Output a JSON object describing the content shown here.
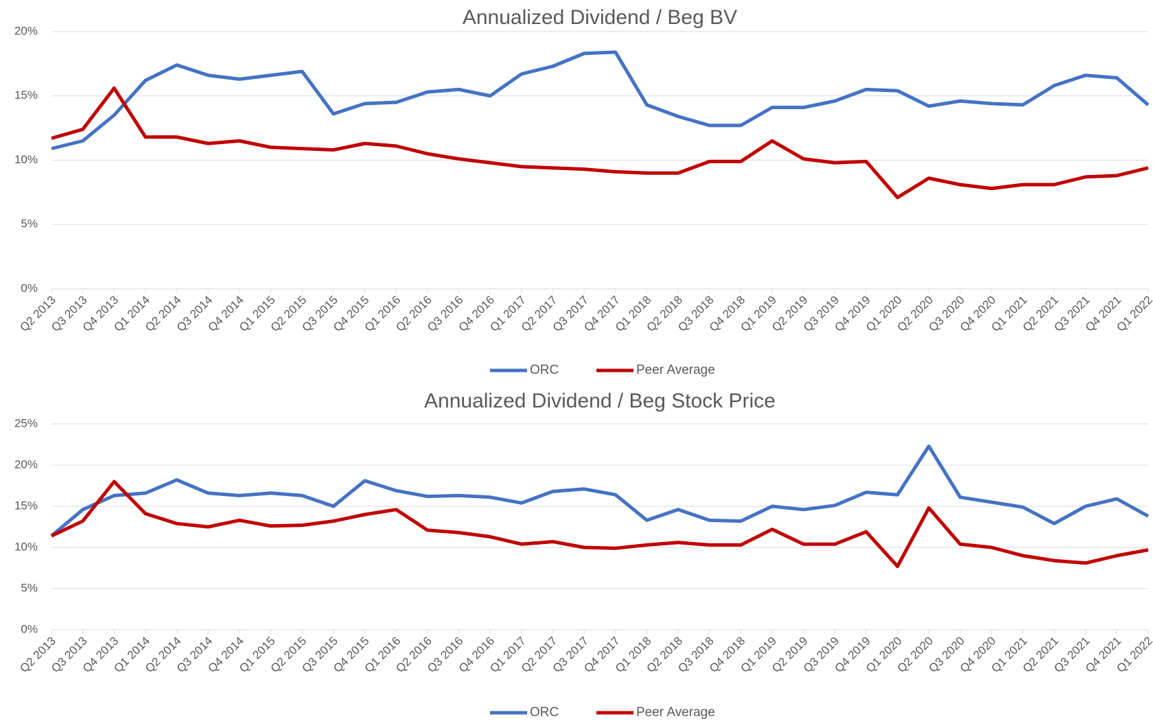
{
  "chart_data": [
    {
      "type": "line",
      "title": "Annualized Dividend / Beg BV",
      "categories": [
        "Q2 2013",
        "Q3 2013",
        "Q4 2013",
        "Q1 2014",
        "Q2 2014",
        "Q3 2014",
        "Q4 2014",
        "Q1 2015",
        "Q2 2015",
        "Q3 2015",
        "Q4 2015",
        "Q1 2016",
        "Q2 2016",
        "Q3 2016",
        "Q4 2016",
        "Q1 2017",
        "Q2 2017",
        "Q3 2017",
        "Q4 2017",
        "Q1 2018",
        "Q2 2018",
        "Q3 2018",
        "Q4 2018",
        "Q1 2019",
        "Q2 2019",
        "Q3 2019",
        "Q4 2019",
        "Q1 2020",
        "Q2 2020",
        "Q3 2020",
        "Q4 2020",
        "Q1 2021",
        "Q2 2021",
        "Q3 2021",
        "Q4 2021",
        "Q1 2022"
      ],
      "series": [
        {
          "name": "ORC",
          "color": "#4472c4",
          "values": [
            10.9,
            11.5,
            13.5,
            16.2,
            17.4,
            16.6,
            16.3,
            16.6,
            16.9,
            13.6,
            14.4,
            14.5,
            15.3,
            15.5,
            15.0,
            16.7,
            17.3,
            18.3,
            18.4,
            14.3,
            13.4,
            12.7,
            12.7,
            14.1,
            14.1,
            14.6,
            15.5,
            15.4,
            14.2,
            14.6,
            14.4,
            14.3,
            15.8,
            16.6,
            16.4,
            14.3
          ]
        },
        {
          "name": "Peer Average",
          "color": "#c00000",
          "values": [
            11.7,
            12.4,
            15.6,
            11.8,
            11.8,
            11.3,
            11.5,
            11.0,
            10.9,
            10.8,
            11.3,
            11.1,
            10.5,
            10.1,
            9.8,
            9.5,
            9.4,
            9.3,
            9.1,
            9.0,
            9.0,
            9.9,
            9.9,
            11.5,
            10.1,
            9.8,
            9.9,
            7.1,
            8.6,
            8.1,
            7.8,
            8.1,
            8.1,
            8.7,
            8.8,
            9.4
          ]
        }
      ],
      "ylim": [
        0,
        20
      ],
      "yticks": [
        {
          "value": 0,
          "label": "0%"
        },
        {
          "value": 5,
          "label": "5%"
        },
        {
          "value": 10,
          "label": "10%"
        },
        {
          "value": 15,
          "label": "15%"
        },
        {
          "value": 20,
          "label": "20%"
        }
      ],
      "grid": true,
      "legend": "bottom"
    },
    {
      "type": "line",
      "title": "Annualized Dividend / Beg Stock Price",
      "categories": [
        "Q2 2013",
        "Q3 2013",
        "Q4 2013",
        "Q1 2014",
        "Q2 2014",
        "Q3 2014",
        "Q4 2014",
        "Q1 2015",
        "Q2 2015",
        "Q3 2015",
        "Q4 2015",
        "Q1 2016",
        "Q2 2016",
        "Q3 2016",
        "Q4 2016",
        "Q1 2017",
        "Q2 2017",
        "Q3 2017",
        "Q4 2017",
        "Q1 2018",
        "Q2 2018",
        "Q3 2018",
        "Q4 2018",
        "Q1 2019",
        "Q2 2019",
        "Q3 2019",
        "Q4 2019",
        "Q1 2020",
        "Q2 2020",
        "Q3 2020",
        "Q4 2020",
        "Q1 2021",
        "Q2 2021",
        "Q3 2021",
        "Q4 2021",
        "Q1 2022"
      ],
      "series": [
        {
          "name": "ORC",
          "color": "#4472c4",
          "values": [
            11.4,
            14.6,
            16.3,
            16.6,
            18.2,
            16.6,
            16.3,
            16.6,
            16.3,
            15.0,
            18.1,
            16.9,
            16.2,
            16.3,
            16.1,
            15.4,
            16.8,
            17.1,
            16.4,
            13.3,
            14.6,
            13.3,
            13.2,
            15.0,
            14.6,
            15.1,
            16.7,
            16.4,
            22.3,
            16.1,
            15.5,
            14.9,
            12.9,
            15.0,
            15.9,
            13.8
          ]
        },
        {
          "name": "Peer Average",
          "color": "#c00000",
          "values": [
            11.4,
            13.2,
            18.0,
            14.1,
            12.9,
            12.5,
            13.3,
            12.6,
            12.7,
            13.2,
            14.0,
            14.6,
            12.1,
            11.8,
            11.3,
            10.4,
            10.7,
            10.0,
            9.9,
            10.3,
            10.6,
            10.3,
            10.3,
            12.2,
            10.4,
            10.4,
            11.9,
            7.7,
            14.8,
            10.4,
            10.0,
            9.0,
            8.4,
            8.1,
            9.0,
            9.7
          ]
        }
      ],
      "ylim": [
        0,
        25
      ],
      "yticks": [
        {
          "value": 0,
          "label": "0%"
        },
        {
          "value": 5,
          "label": "5%"
        },
        {
          "value": 10,
          "label": "10%"
        },
        {
          "value": 15,
          "label": "15%"
        },
        {
          "value": 20,
          "label": "20%"
        },
        {
          "value": 25,
          "label": "25%"
        }
      ],
      "grid": true,
      "legend": "bottom"
    }
  ]
}
